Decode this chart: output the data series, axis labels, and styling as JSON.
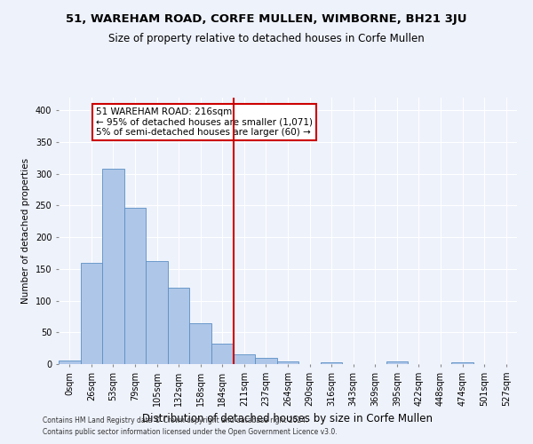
{
  "title": "51, WAREHAM ROAD, CORFE MULLEN, WIMBORNE, BH21 3JU",
  "subtitle": "Size of property relative to detached houses in Corfe Mullen",
  "xlabel": "Distribution of detached houses by size in Corfe Mullen",
  "ylabel": "Number of detached properties",
  "footnote1": "Contains HM Land Registry data © Crown copyright and database right 2024.",
  "footnote2": "Contains public sector information licensed under the Open Government Licence v3.0.",
  "bar_labels": [
    "0sqm",
    "26sqm",
    "53sqm",
    "79sqm",
    "105sqm",
    "132sqm",
    "158sqm",
    "184sqm",
    "211sqm",
    "237sqm",
    "264sqm",
    "290sqm",
    "316sqm",
    "343sqm",
    "369sqm",
    "395sqm",
    "422sqm",
    "448sqm",
    "474sqm",
    "501sqm",
    "527sqm"
  ],
  "bar_values": [
    5,
    160,
    308,
    247,
    162,
    121,
    65,
    32,
    16,
    10,
    4,
    0,
    3,
    0,
    0,
    4,
    0,
    0,
    3,
    0,
    0
  ],
  "bar_color": "#aec6e8",
  "bar_edgecolor": "#5b8fc4",
  "property_line_x": 7.5,
  "property_line_color": "#cc0000",
  "annotation_text": "51 WAREHAM ROAD: 216sqm\n← 95% of detached houses are smaller (1,071)\n5% of semi-detached houses are larger (60) →",
  "annotation_box_color": "#cc0000",
  "ylim": [
    0,
    420
  ],
  "yticks": [
    0,
    50,
    100,
    150,
    200,
    250,
    300,
    350,
    400
  ],
  "background_color": "#eef2fb",
  "grid_color": "#ffffff",
  "title_fontsize": 9.5,
  "subtitle_fontsize": 8.5,
  "xlabel_fontsize": 8.5,
  "ylabel_fontsize": 7.5,
  "tick_fontsize": 7,
  "annotation_fontsize": 7.5,
  "footnote_fontsize": 5.5
}
